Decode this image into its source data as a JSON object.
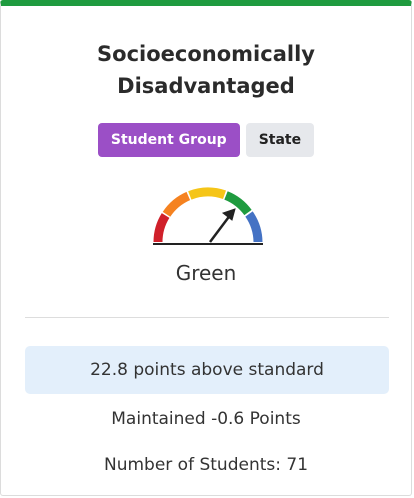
{
  "card": {
    "title": "Socioeconomically Disadvantaged",
    "badges": [
      "Student Group",
      "State"
    ],
    "gauge_label": "Green",
    "status": "22.8 points above standard",
    "change": "Maintained -0.6 Points",
    "students": "Number of Students: 71"
  }
}
